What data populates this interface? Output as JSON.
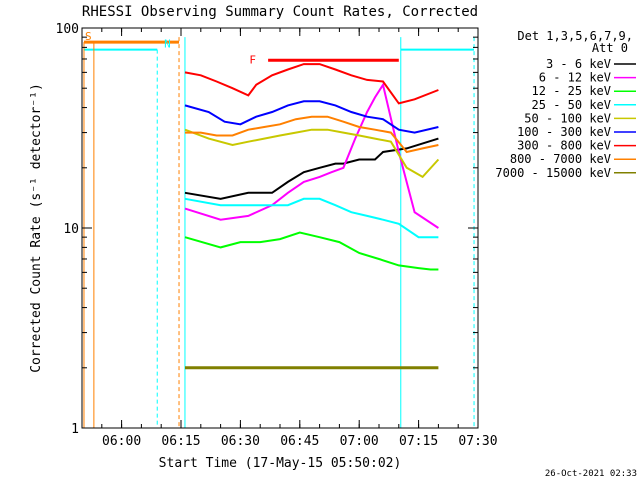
{
  "chart_data": {
    "type": "line",
    "title": "RHESSI Observing Summary Count Rates, Corrected",
    "xlabel": "Start Time (17-May-15 05:50:02)",
    "ylabel": "Corrected Count Rate (s⁻¹ detector⁻¹)",
    "yscale": "log",
    "ylim": [
      1,
      100
    ],
    "xlim_minutes": [
      0,
      100
    ],
    "x_tick_labels": [
      "06:00",
      "06:15",
      "06:30",
      "06:45",
      "07:00",
      "07:15",
      "07:30"
    ],
    "x_tick_minutes": [
      10,
      25,
      40,
      55,
      70,
      85,
      100
    ],
    "y_tick_labels": [
      "1",
      "10",
      "100"
    ],
    "y_tick_values": [
      1,
      10,
      100
    ],
    "grid": false,
    "legend_position": "right",
    "legend_header": [
      "Det 1,3,5,6,7,9,",
      "Att 0"
    ],
    "footer_date": "26-Oct-2021 02:33",
    "series": [
      {
        "name": "3 - 6 keV",
        "color": "#000000",
        "x": [
          26,
          35,
          42,
          48,
          52,
          56,
          60,
          64,
          66,
          70,
          74,
          76,
          82,
          90
        ],
        "y": [
          15,
          14,
          15,
          15,
          17,
          19,
          20,
          21,
          21,
          22,
          22,
          24,
          25,
          28
        ]
      },
      {
        "name": "6 - 12 keV",
        "color": "#ff00ff",
        "x": [
          26,
          35,
          42,
          48,
          52,
          56,
          60,
          63,
          66,
          69,
          72,
          74,
          76,
          80,
          84,
          90
        ],
        "y": [
          12.5,
          11,
          11.5,
          13,
          15,
          17,
          18,
          19,
          20,
          28,
          38,
          45,
          52,
          24,
          12,
          10
        ]
      },
      {
        "name": "12 - 25 keV",
        "color": "#00ff00",
        "x": [
          26,
          35,
          40,
          45,
          50,
          55,
          60,
          65,
          70,
          75,
          80,
          85,
          88,
          90
        ],
        "y": [
          9,
          8,
          8.5,
          8.5,
          8.8,
          9.5,
          9,
          8.5,
          7.5,
          7,
          6.5,
          6.3,
          6.2,
          6.2
        ]
      },
      {
        "name": "25 - 50 keV",
        "color": "#00ffff",
        "x": [
          26,
          35,
          42,
          48,
          52,
          56,
          60,
          64,
          68,
          72,
          76,
          80,
          85,
          90
        ],
        "y": [
          14,
          13,
          13,
          13,
          13,
          14,
          14,
          13,
          12,
          11.5,
          11,
          10.5,
          9,
          9
        ]
      },
      {
        "name": "50 - 100 keV",
        "color": "#c8c800",
        "x": [
          26,
          32,
          38,
          42,
          46,
          50,
          54,
          58,
          62,
          66,
          70,
          74,
          78,
          82,
          86,
          90
        ],
        "y": [
          31,
          28,
          26,
          27,
          28,
          29,
          30,
          31,
          31,
          30,
          29,
          28,
          27,
          20,
          18,
          22
        ]
      },
      {
        "name": "100 - 300 keV",
        "color": "#0000ff",
        "x": [
          26,
          32,
          36,
          40,
          44,
          48,
          52,
          56,
          60,
          64,
          68,
          72,
          76,
          80,
          84,
          90
        ],
        "y": [
          41,
          38,
          34,
          33,
          36,
          38,
          41,
          43,
          43,
          41,
          38,
          36,
          35,
          31,
          30,
          32
        ]
      },
      {
        "name": "300 - 800 keV",
        "color": "#ff0000",
        "x": [
          26,
          30,
          34,
          38,
          42,
          44,
          48,
          52,
          56,
          60,
          64,
          68,
          72,
          76,
          80,
          84,
          90
        ],
        "y": [
          60,
          58,
          54,
          50,
          46,
          52,
          58,
          62,
          66,
          66,
          62,
          58,
          55,
          54,
          42,
          44,
          49
        ]
      },
      {
        "name": "800 - 7000 keV",
        "color": "#ff8000",
        "x": [
          26,
          30,
          34,
          38,
          42,
          46,
          50,
          54,
          58,
          62,
          66,
          70,
          74,
          78,
          82,
          86,
          90
        ],
        "y": [
          30,
          30,
          29,
          29,
          31,
          32,
          33,
          35,
          36,
          36,
          34,
          32,
          31,
          30,
          24,
          25,
          26
        ]
      },
      {
        "name": "7000 - 15000 keV",
        "color": "#808000",
        "x": [
          26,
          90
        ],
        "y": [
          2,
          2
        ]
      }
    ],
    "annotations": [
      {
        "text": "S",
        "x_minutes": 0.5,
        "y": 85,
        "color": "#ff8000"
      },
      {
        "text": "N",
        "x_minutes": 20.5,
        "y": 78,
        "color": "#00ffff"
      },
      {
        "text": "F",
        "x_minutes": 42,
        "y": 65,
        "color": "#ff0000"
      }
    ]
  }
}
